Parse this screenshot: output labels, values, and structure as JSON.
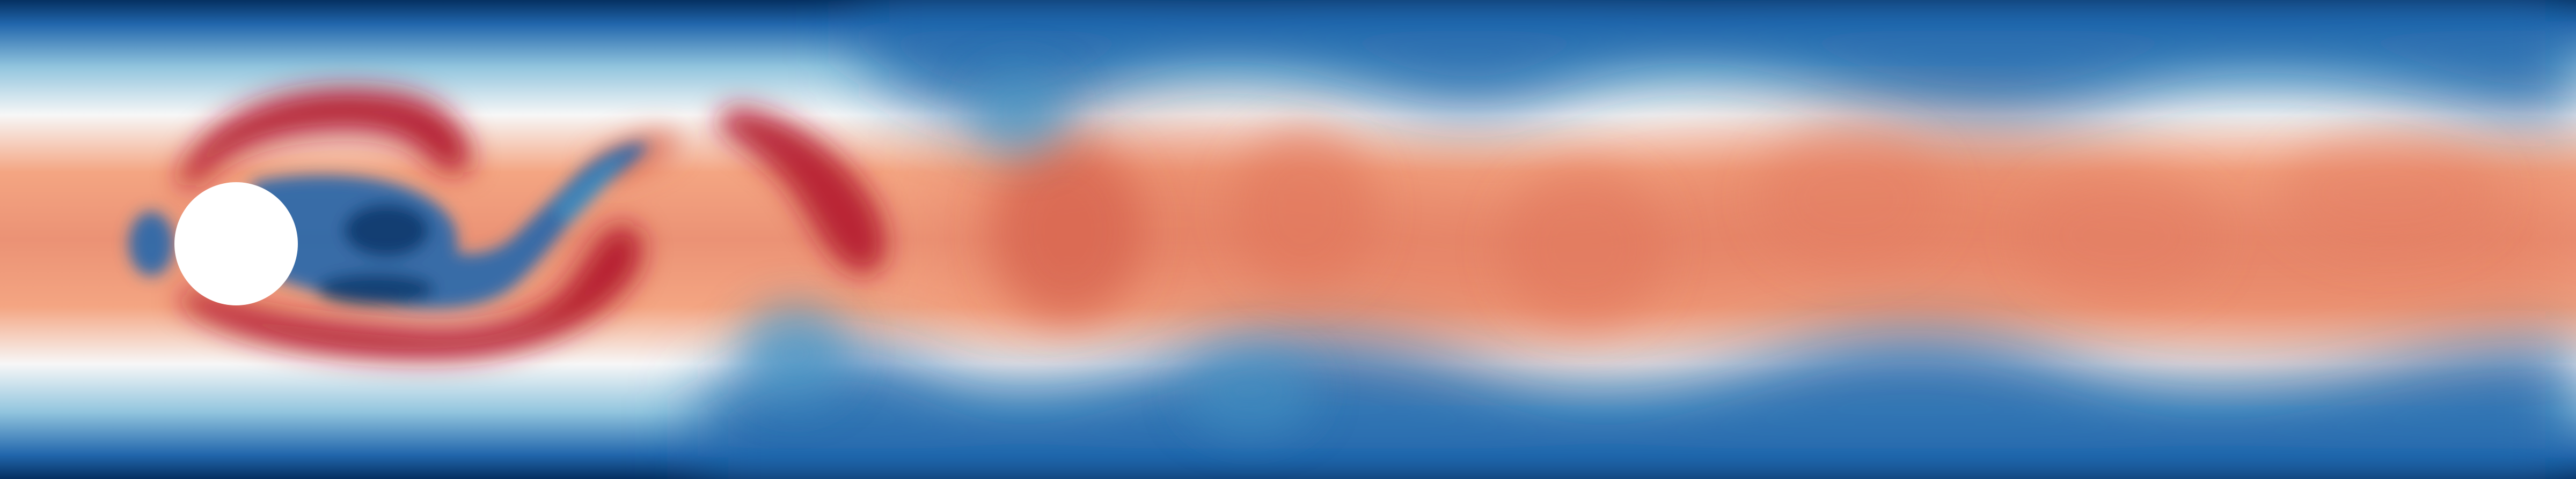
{
  "image": {
    "subject": "flow-field-around-cylinder",
    "colormap": [
      "#053061",
      "#2166ac",
      "#4393c3",
      "#92c5de",
      "#f7f7f7",
      "#f4a582",
      "#d6604d",
      "#b2182b"
    ],
    "obstacle_shape": "circle",
    "obstacle_color": "#ffffff",
    "wall_color": "#053061",
    "core_color": "#e8876c"
  }
}
